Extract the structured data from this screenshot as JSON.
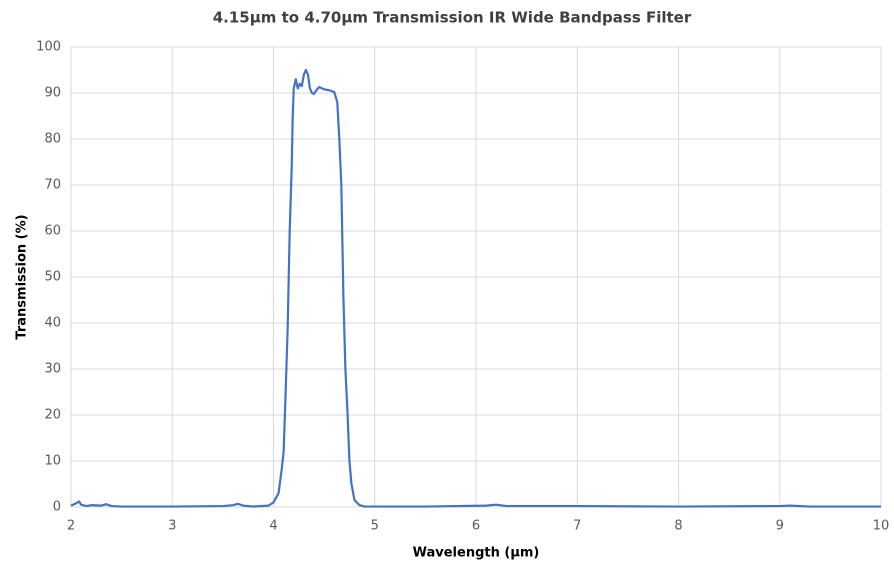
{
  "chart_data": {
    "type": "line",
    "title": "4.15µm to 4.70µm Transmission IR Wide Bandpass Filter",
    "x_label": "Wavelength (µm)",
    "y_label": "Transmission (%)",
    "x": [
      2.0,
      2.05,
      2.08,
      2.1,
      2.15,
      2.2,
      2.3,
      2.35,
      2.4,
      2.5,
      3.0,
      3.5,
      3.6,
      3.65,
      3.7,
      3.8,
      3.95,
      4.0,
      4.05,
      4.08,
      4.1,
      4.12,
      4.14,
      4.16,
      4.18,
      4.19,
      4.2,
      4.22,
      4.24,
      4.26,
      4.28,
      4.3,
      4.32,
      4.34,
      4.36,
      4.38,
      4.4,
      4.42,
      4.45,
      4.5,
      4.55,
      4.6,
      4.63,
      4.65,
      4.67,
      4.69,
      4.71,
      4.73,
      4.75,
      4.77,
      4.8,
      4.85,
      4.9,
      5.5,
      6.1,
      6.2,
      6.3,
      7.0,
      8.0,
      9.0,
      9.1,
      9.3,
      10.0
    ],
    "values": [
      0.3,
      0.8,
      1.2,
      0.5,
      0.2,
      0.4,
      0.3,
      0.6,
      0.2,
      0.1,
      0.1,
      0.2,
      0.4,
      0.7,
      0.3,
      0.1,
      0.3,
      1,
      3,
      8,
      12,
      25,
      39,
      60,
      74,
      85,
      91,
      93,
      91,
      92,
      91.5,
      94,
      95,
      94,
      91,
      90,
      89.8,
      90.5,
      91.3,
      90.8,
      90.6,
      90.2,
      88,
      80,
      70,
      46,
      30,
      21,
      10,
      5,
      1.5,
      0.4,
      0.1,
      0.1,
      0.3,
      0.5,
      0.2,
      0.2,
      0.1,
      0.2,
      0.3,
      0.1,
      0.1
    ],
    "color": "#4472c4",
    "xlim": [
      2,
      10
    ],
    "xticks": [
      2,
      3,
      4,
      5,
      6,
      7,
      8,
      9,
      10
    ],
    "ylim": [
      0,
      100
    ],
    "yticks": [
      0,
      10,
      20,
      30,
      40,
      50,
      60,
      70,
      80,
      90,
      100
    ],
    "grid": true
  }
}
